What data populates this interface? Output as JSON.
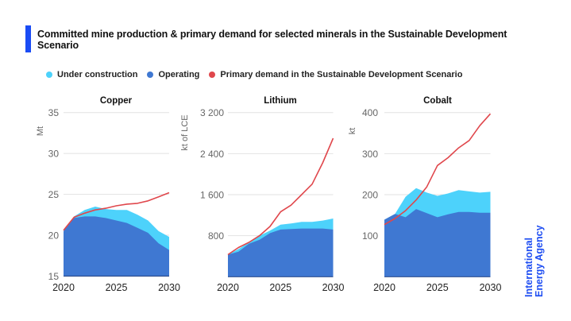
{
  "header": {
    "title": "Committed mine production & primary demand for selected minerals in the Sustainable Development Scenario"
  },
  "legend": [
    {
      "label": "Under construction",
      "color": "#4dd2fb"
    },
    {
      "label": "Operating",
      "color": "#3f78d2"
    },
    {
      "label": "Primary demand in the Sustainable Development Scenario",
      "color": "#e0474c"
    }
  ],
  "logo": {
    "line1": "International",
    "line2": "Energy Agency"
  },
  "colors": {
    "under_construction": "#4dd2fb",
    "operating": "#3f78d2",
    "demand": "#e0474c",
    "grid": "#e2e2e2",
    "accent": "#1a4cf5"
  },
  "chart_data": [
    {
      "type": "area",
      "title": "Copper",
      "ylabel": "Mt",
      "ylim": [
        15,
        35
      ],
      "yticks": [
        15,
        20,
        25,
        30,
        35
      ],
      "ytick_labels": [
        "15",
        "20",
        "25",
        "30",
        "35"
      ],
      "x": [
        2020,
        2021,
        2022,
        2023,
        2024,
        2025,
        2026,
        2027,
        2028,
        2029,
        2030
      ],
      "xticks": [
        2020,
        2025,
        2030
      ],
      "xtick_labels": [
        "2020",
        "2025",
        "2030"
      ],
      "grid": true,
      "series": [
        {
          "name": "Operating",
          "kind": "area",
          "values": [
            20.5,
            22.1,
            22.3,
            22.3,
            22.1,
            21.8,
            21.5,
            20.9,
            20.3,
            19.0,
            18.2
          ]
        },
        {
          "name": "Under construction (stacked total)",
          "kind": "area",
          "values": [
            20.5,
            22.3,
            23.1,
            23.5,
            23.2,
            23.1,
            23.1,
            22.5,
            21.8,
            20.5,
            19.8
          ]
        },
        {
          "name": "Primary demand in the Sustainable Development Scenario",
          "kind": "line",
          "values": [
            20.6,
            22.2,
            22.7,
            23.1,
            23.3,
            23.6,
            23.8,
            23.9,
            24.2,
            24.7,
            25.2
          ]
        }
      ]
    },
    {
      "type": "area",
      "title": "Lithium",
      "ylabel": "kt of LCE",
      "ylim": [
        0,
        3200
      ],
      "yticks": [
        800,
        1600,
        2400,
        3200
      ],
      "ytick_labels": [
        "800",
        "1 600",
        "2 400",
        "3 200"
      ],
      "x": [
        2020,
        2021,
        2022,
        2023,
        2024,
        2025,
        2026,
        2027,
        2028,
        2029,
        2030
      ],
      "xticks": [
        2020,
        2025,
        2030
      ],
      "xtick_labels": [
        "2020",
        "2025",
        "2030"
      ],
      "grid": true,
      "series": [
        {
          "name": "Operating",
          "kind": "area",
          "values": [
            430,
            490,
            645,
            720,
            850,
            920,
            930,
            940,
            940,
            940,
            920
          ]
        },
        {
          "name": "Under construction (stacked total)",
          "kind": "area",
          "values": [
            430,
            540,
            670,
            800,
            900,
            1015,
            1040,
            1070,
            1070,
            1095,
            1135
          ]
        },
        {
          "name": "Primary demand in the Sustainable Development Scenario",
          "kind": "line",
          "values": [
            430,
            570,
            670,
            800,
            980,
            1265,
            1395,
            1600,
            1805,
            2220,
            2700
          ]
        }
      ]
    },
    {
      "type": "area",
      "title": "Cobalt",
      "ylabel": "kt",
      "ylim": [
        0,
        400
      ],
      "yticks": [
        100,
        200,
        300,
        400
      ],
      "ytick_labels": [
        "100",
        "200",
        "300",
        "400"
      ],
      "x": [
        2020,
        2021,
        2022,
        2023,
        2024,
        2025,
        2026,
        2027,
        2028,
        2029,
        2030
      ],
      "xticks": [
        2020,
        2025,
        2030
      ],
      "xtick_labels": [
        "2020",
        "2025",
        "2030"
      ],
      "grid": true,
      "series": [
        {
          "name": "Operating",
          "kind": "area",
          "values": [
            139,
            153,
            145,
            165,
            155,
            145,
            152,
            158,
            158,
            156,
            156
          ]
        },
        {
          "name": "Under construction (stacked total)",
          "kind": "area",
          "values": [
            139,
            153,
            195,
            216,
            205,
            197,
            203,
            211,
            208,
            205,
            207
          ]
        },
        {
          "name": "Primary demand in the Sustainable Development Scenario",
          "kind": "line",
          "values": [
            127,
            142,
            161,
            187,
            219,
            271,
            290,
            314,
            332,
            368,
            397
          ]
        }
      ]
    }
  ]
}
